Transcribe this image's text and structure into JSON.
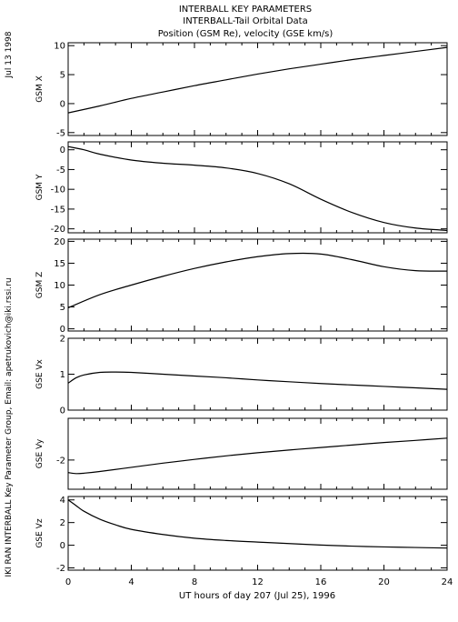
{
  "header": {
    "title_lines": [
      "INTERBALL KEY PARAMETERS",
      "INTERBALL-Tail Orbital Data",
      "Position (GSM Re), velocity (GSE km/s)"
    ],
    "date_label": "Jul 13 1998",
    "credit": "IKI RAN INTERBALL Key Parameter Group, Email: apetrukovich@iki.rssi.ru"
  },
  "chart_data": {
    "type": "line",
    "xlabel": "UT hours of day 207 (Jul 25), 1996",
    "xlim": [
      0,
      24
    ],
    "xticks": [
      0,
      4,
      8,
      12,
      16,
      20,
      24
    ],
    "panels": [
      {
        "ylabel": "GSM X",
        "ylim": [
          -5.5,
          10.5
        ],
        "yticks": [
          -5,
          0,
          5,
          10
        ],
        "series": [
          {
            "x": [
              0,
              2,
              4,
              6,
              8,
              10,
              12,
              14,
              16,
              18,
              20,
              22,
              24
            ],
            "y": [
              -1.6,
              -0.4,
              0.9,
              2.0,
              3.1,
              4.1,
              5.1,
              6.0,
              6.8,
              7.6,
              8.3,
              9.0,
              9.7
            ]
          }
        ]
      },
      {
        "ylabel": "GSM Y",
        "ylim": [
          -21,
          2
        ],
        "yticks": [
          0,
          -5,
          -10,
          -15,
          -20
        ],
        "series": [
          {
            "x": [
              0,
              1,
              2,
              4,
              6,
              8,
              10,
              12,
              14,
              16,
              18,
              20,
              22,
              24
            ],
            "y": [
              0.8,
              0.0,
              -1.1,
              -2.6,
              -3.4,
              -3.9,
              -4.6,
              -6.0,
              -8.6,
              -12.5,
              -15.9,
              -18.4,
              -19.8,
              -20.4
            ]
          }
        ]
      },
      {
        "ylabel": "GSM Z",
        "ylim": [
          -0.5,
          20.5
        ],
        "yticks": [
          0,
          5,
          10,
          15,
          20
        ],
        "series": [
          {
            "x": [
              0,
              2,
              4,
              6,
              8,
              10,
              12,
              14,
              16,
              18,
              20,
              22,
              24
            ],
            "y": [
              4.8,
              7.8,
              10.0,
              12.0,
              13.8,
              15.3,
              16.5,
              17.2,
              17.1,
              15.8,
              14.2,
              13.3,
              13.2
            ]
          }
        ]
      },
      {
        "ylabel": "GSE Vx",
        "ylim": [
          0,
          2
        ],
        "yticks": [
          0,
          1,
          2
        ],
        "series": [
          {
            "x": [
              0,
              0.5,
              1,
              2,
              3,
              4,
              6,
              8,
              10,
              12,
              14,
              16,
              18,
              20,
              22,
              24
            ],
            "y": [
              0.75,
              0.9,
              0.98,
              1.05,
              1.06,
              1.05,
              1.0,
              0.95,
              0.9,
              0.84,
              0.79,
              0.74,
              0.7,
              0.66,
              0.62,
              0.58
            ]
          }
        ]
      },
      {
        "ylabel": "GSE Vy",
        "ylim": [
          -3.4,
          0
        ],
        "yticks": [
          -2
        ],
        "series": [
          {
            "x": [
              0,
              0.5,
              1,
              2,
              4,
              6,
              8,
              10,
              12,
              14,
              16,
              18,
              20,
              22,
              24
            ],
            "y": [
              -2.6,
              -2.65,
              -2.63,
              -2.55,
              -2.35,
              -2.15,
              -1.97,
              -1.8,
              -1.65,
              -1.52,
              -1.4,
              -1.28,
              -1.16,
              -1.06,
              -0.95
            ]
          }
        ]
      },
      {
        "ylabel": "GSE Vz",
        "ylim": [
          -2.2,
          4.3
        ],
        "yticks": [
          -2,
          0,
          2,
          4
        ],
        "series": [
          {
            "x": [
              0,
              0.5,
              1,
              2,
              3,
              4,
              6,
              8,
              10,
              12,
              14,
              16,
              18,
              20,
              22,
              24
            ],
            "y": [
              4.0,
              3.5,
              3.0,
              2.3,
              1.8,
              1.4,
              0.95,
              0.62,
              0.42,
              0.28,
              0.15,
              0.02,
              -0.08,
              -0.15,
              -0.2,
              -0.25
            ]
          }
        ]
      }
    ]
  }
}
